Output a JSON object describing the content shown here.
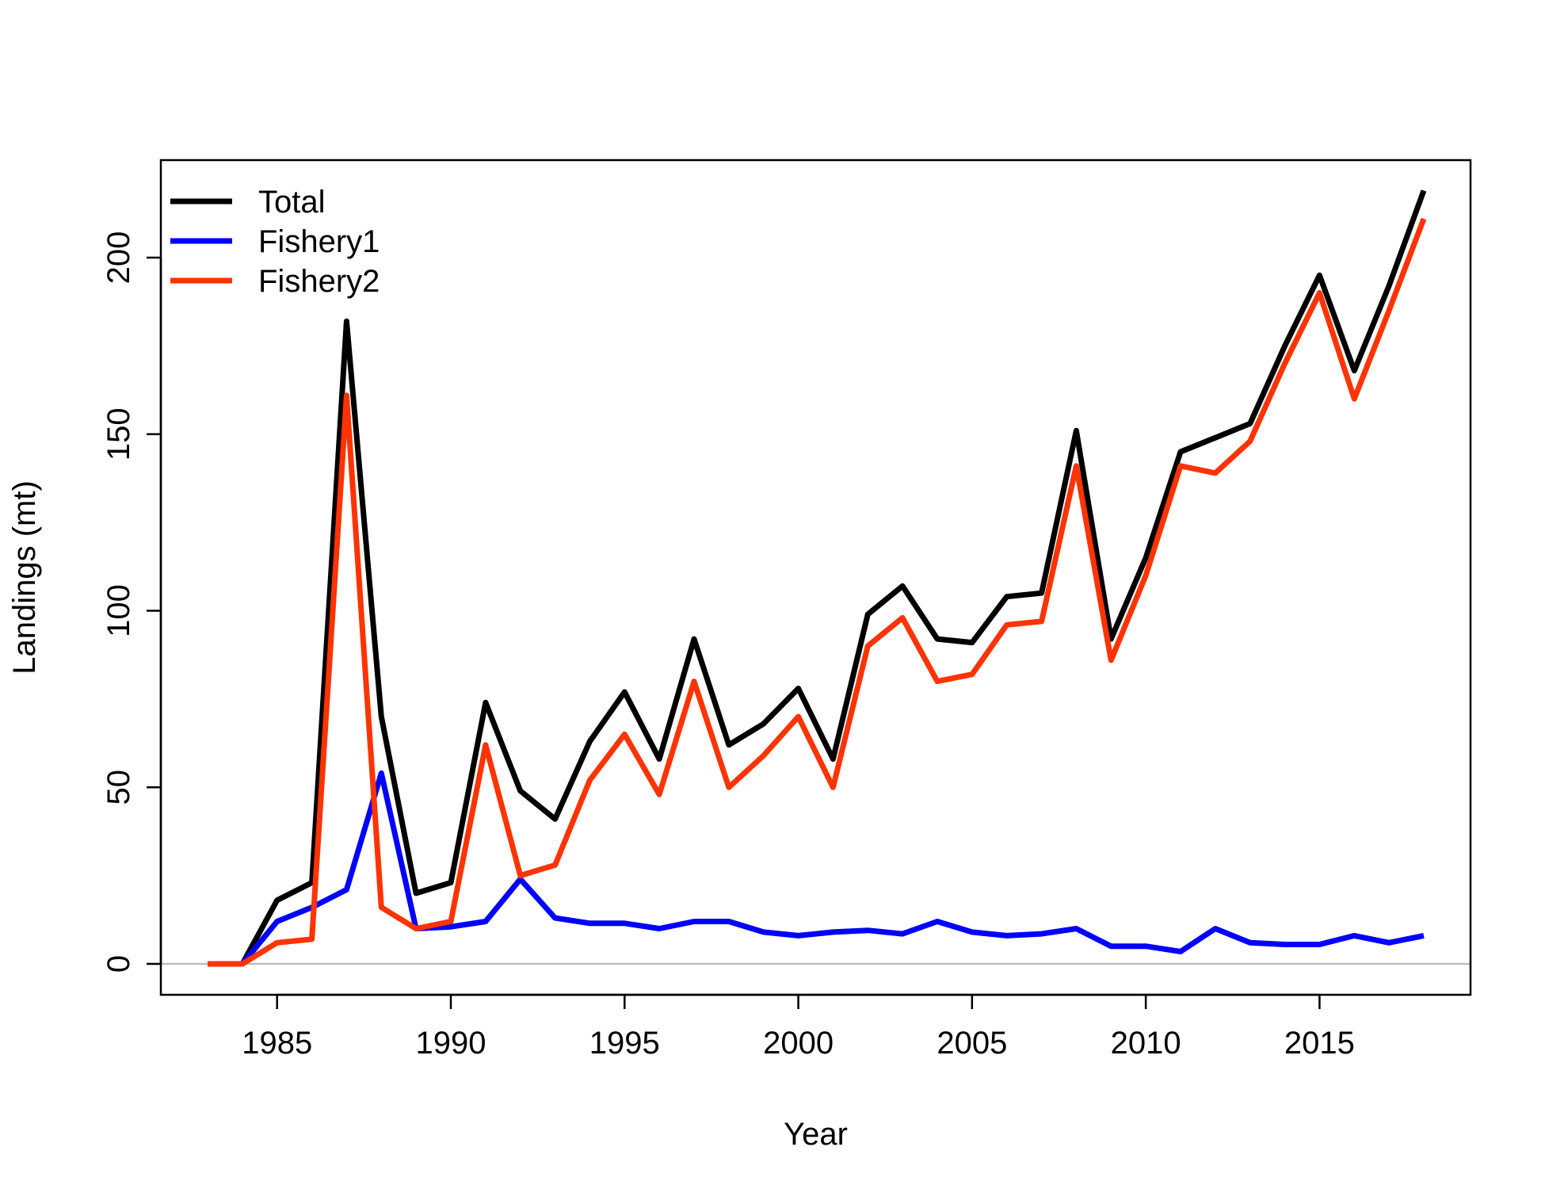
{
  "chart_data": {
    "type": "line",
    "title": "",
    "xlabel": "Year",
    "ylabel": "Landings (mt)",
    "xlim": [
      1983,
      2018
    ],
    "ylim": [
      0,
      220
    ],
    "x_ticks": [
      1985,
      1990,
      1995,
      2000,
      2005,
      2010,
      2015
    ],
    "y_ticks": [
      0,
      50,
      100,
      150,
      200
    ],
    "grid": false,
    "reference_line": {
      "y": 0,
      "color": "#bebebe"
    },
    "legend": {
      "position": "top-left"
    },
    "x": [
      1983,
      1984,
      1985,
      1986,
      1987,
      1988,
      1989,
      1990,
      1991,
      1992,
      1993,
      1994,
      1995,
      1996,
      1997,
      1998,
      1999,
      2000,
      2001,
      2002,
      2003,
      2004,
      2005,
      2006,
      2007,
      2008,
      2009,
      2010,
      2011,
      2012,
      2013,
      2014,
      2015,
      2016,
      2017,
      2018
    ],
    "series": [
      {
        "name": "Total",
        "color": "#000000",
        "values": [
          0,
          0,
          18,
          23,
          182,
          70,
          20,
          23,
          74,
          49,
          41,
          63,
          77,
          58,
          92,
          62,
          68,
          78,
          58,
          99,
          107,
          92,
          91,
          104,
          105,
          151,
          92,
          115,
          145,
          149,
          153,
          175,
          195,
          168,
          192,
          219
        ]
      },
      {
        "name": "Fishery1",
        "color": "#0000ff",
        "values": [
          0,
          0,
          12,
          16,
          21,
          54,
          10,
          10.5,
          12,
          24,
          13,
          11.5,
          11.5,
          10,
          12,
          12,
          9,
          8,
          9,
          9.5,
          8.5,
          12,
          9,
          8,
          8.5,
          10,
          5,
          5,
          3.5,
          10,
          6,
          5.5,
          5.5,
          8,
          6,
          8
        ]
      },
      {
        "name": "Fishery2",
        "color": "#ff3300",
        "values": [
          0,
          0,
          6,
          7,
          161,
          16,
          10,
          12,
          62,
          25,
          28,
          52,
          65,
          48,
          80,
          50,
          59,
          70,
          50,
          90,
          98,
          80,
          82,
          96,
          97,
          141,
          86,
          110,
          141,
          139,
          148,
          170,
          190,
          160,
          185,
          211
        ]
      }
    ]
  }
}
